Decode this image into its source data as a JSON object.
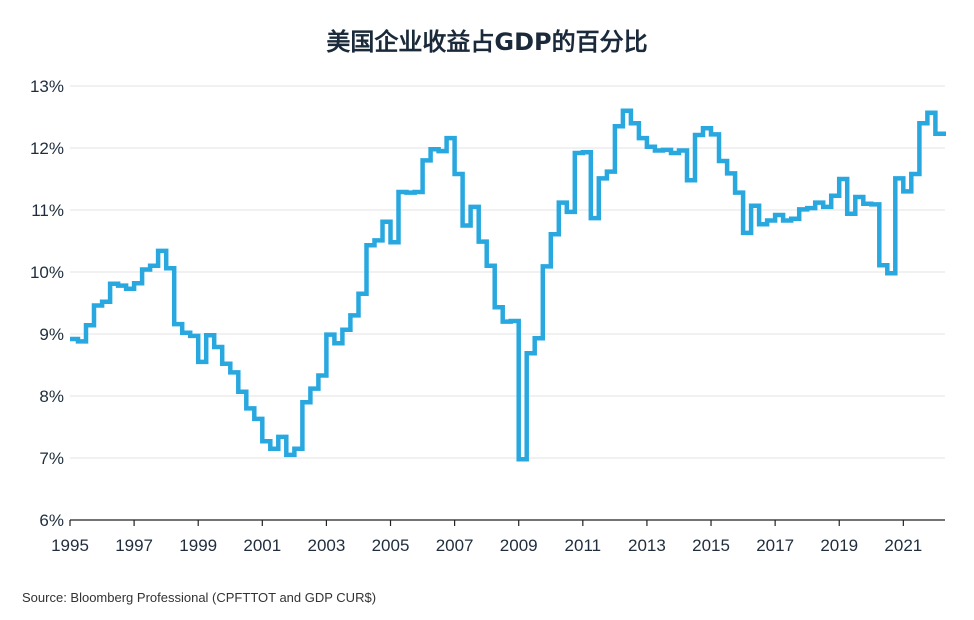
{
  "source": "Source: Bloomberg Professional (CPFTTOT and GDP CUR$)",
  "colors": {
    "line": "#29a8e0",
    "grid": "#e3e3e3",
    "axis": "#222222",
    "text": "#1f2d3d"
  },
  "chart_data": {
    "type": "line",
    "title": "美国企业收益占GDP的百分比",
    "xlabel": "",
    "ylabel": "",
    "xlim": [
      1995.0,
      2022.25
    ],
    "ylim": [
      6,
      13
    ],
    "grid": true,
    "line_style": "step",
    "y_ticks": [
      {
        "value": 6,
        "label": "6%"
      },
      {
        "value": 7,
        "label": "7%"
      },
      {
        "value": 8,
        "label": "8%"
      },
      {
        "value": 9,
        "label": "9%"
      },
      {
        "value": 10,
        "label": "10%"
      },
      {
        "value": 11,
        "label": "11%"
      },
      {
        "value": 12,
        "label": "12%"
      },
      {
        "value": 13,
        "label": "13%"
      }
    ],
    "x_ticks": [
      {
        "value": 1995,
        "label": "1995"
      },
      {
        "value": 1997,
        "label": "1997"
      },
      {
        "value": 1999,
        "label": "1999"
      },
      {
        "value": 2001,
        "label": "2001"
      },
      {
        "value": 2003,
        "label": "2003"
      },
      {
        "value": 2005,
        "label": "2005"
      },
      {
        "value": 2007,
        "label": "2007"
      },
      {
        "value": 2009,
        "label": "2009"
      },
      {
        "value": 2011,
        "label": "2011"
      },
      {
        "value": 2013,
        "label": "2013"
      },
      {
        "value": 2015,
        "label": "2015"
      },
      {
        "value": 2017,
        "label": "2017"
      },
      {
        "value": 2019,
        "label": "2019"
      },
      {
        "value": 2021,
        "label": "2021"
      }
    ],
    "series": [
      {
        "x": [
          1995.0,
          1995.25,
          1995.5,
          1995.75,
          1996.0,
          1996.25,
          1996.5,
          1996.75,
          1997.0,
          1997.25,
          1997.5,
          1997.75,
          1998.0,
          1998.25,
          1998.5,
          1998.75,
          1999.0,
          1999.25,
          1999.5,
          1999.75,
          2000.0,
          2000.25,
          2000.5,
          2000.75,
          2001.0,
          2001.25,
          2001.5,
          2001.75,
          2002.0,
          2002.25,
          2002.5,
          2002.75,
          2003.0,
          2003.25,
          2003.5,
          2003.75,
          2004.0,
          2004.25,
          2004.5,
          2004.75,
          2005.0,
          2005.25,
          2005.5,
          2005.75,
          2006.0,
          2006.25,
          2006.5,
          2006.75,
          2007.0,
          2007.25,
          2007.5,
          2007.75,
          2008.0,
          2008.25,
          2008.5,
          2008.75,
          2009.0,
          2009.25,
          2009.5,
          2009.75,
          2010.0,
          2010.25,
          2010.5,
          2010.75,
          2011.0,
          2011.25,
          2011.5,
          2011.75,
          2012.0,
          2012.25,
          2012.5,
          2012.75,
          2013.0,
          2013.25,
          2013.5,
          2013.75,
          2014.0,
          2014.25,
          2014.5,
          2014.75,
          2015.0,
          2015.25,
          2015.5,
          2015.75,
          2016.0,
          2016.25,
          2016.5,
          2016.75,
          2017.0,
          2017.25,
          2017.5,
          2017.75,
          2018.0,
          2018.25,
          2018.5,
          2018.75,
          2019.0,
          2019.25,
          2019.5,
          2019.75,
          2020.0,
          2020.25,
          2020.5,
          2020.75,
          2021.0,
          2021.25,
          2021.5,
          2021.75,
          2022.0,
          2022.25
        ],
        "values": [
          8.92,
          8.88,
          9.14,
          9.46,
          9.52,
          9.81,
          9.78,
          9.73,
          9.82,
          10.04,
          10.1,
          10.34,
          10.06,
          9.16,
          9.02,
          8.97,
          8.55,
          8.98,
          8.79,
          8.52,
          8.38,
          8.07,
          7.8,
          7.63,
          7.27,
          7.15,
          7.34,
          7.05,
          7.15,
          7.9,
          8.12,
          8.33,
          8.99,
          8.85,
          9.07,
          9.3,
          9.65,
          10.43,
          10.51,
          10.81,
          10.48,
          11.29,
          11.28,
          11.29,
          11.8,
          11.98,
          11.95,
          12.16,
          11.58,
          10.75,
          11.05,
          10.49,
          10.1,
          9.43,
          9.2,
          9.21,
          6.98,
          8.69,
          8.93,
          10.09,
          10.61,
          11.12,
          10.97,
          11.92,
          11.93,
          10.87,
          11.51,
          11.62,
          12.35,
          12.6,
          12.4,
          12.16,
          12.02,
          11.96,
          11.97,
          11.92,
          11.96,
          11.48,
          12.21,
          12.32,
          12.22,
          11.79,
          11.59,
          11.28,
          10.63,
          11.07,
          10.77,
          10.83,
          10.92,
          10.83,
          10.86,
          11.01,
          11.03,
          11.12,
          11.05,
          11.23,
          11.5,
          10.94,
          11.21,
          11.1,
          11.09,
          10.11,
          9.98,
          11.51,
          11.3,
          11.58,
          12.4,
          12.57,
          12.23,
          12.23
        ]
      }
    ]
  }
}
